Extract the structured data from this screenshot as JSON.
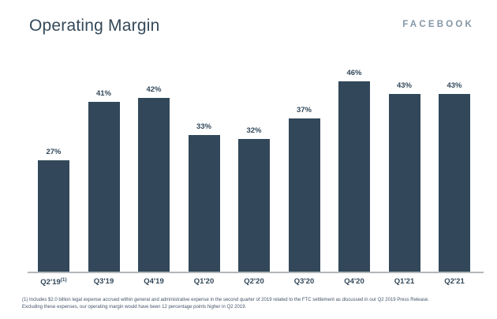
{
  "slide": {
    "title": "Operating Margin",
    "brand": "FACEBOOK"
  },
  "chart_data": {
    "type": "bar",
    "title": "Operating Margin",
    "categories": [
      "Q2'19",
      "Q3'19",
      "Q4'19",
      "Q1'20",
      "Q2'20",
      "Q3'20",
      "Q4'20",
      "Q1'21",
      "Q2'21"
    ],
    "values": [
      27,
      41,
      42,
      33,
      32,
      37,
      46,
      43,
      43
    ],
    "value_labels": [
      "27%",
      "41%",
      "42%",
      "33%",
      "32%",
      "37%",
      "46%",
      "43%",
      "43%"
    ],
    "category_superscripts": {
      "0": "(1)"
    },
    "xlabel": "",
    "ylabel": "",
    "ylim": [
      0,
      50
    ],
    "grid": false,
    "legend": false,
    "axes_shown": "x-baseline-only",
    "bar_color": "#32485a",
    "axis_line_color": "#b3b7bb",
    "label_color": "#32485a"
  },
  "footnote": {
    "line1": "(1) Includes $2.0 billion legal expense accrued within general and administrative expense in the second quarter of 2019 related to the FTC settlement as discussed in our Q2 2019 Press Release.",
    "line2": "Excluding these expenses, our operating margin would have been 12 percentage points higher in Q2 2019."
  },
  "colors": {
    "background": "#ffffff",
    "title": "#34495a",
    "brand": "#8496a6",
    "bar": "#32485a",
    "axis_line": "#b3b7bb",
    "footnote": "#44556a"
  }
}
